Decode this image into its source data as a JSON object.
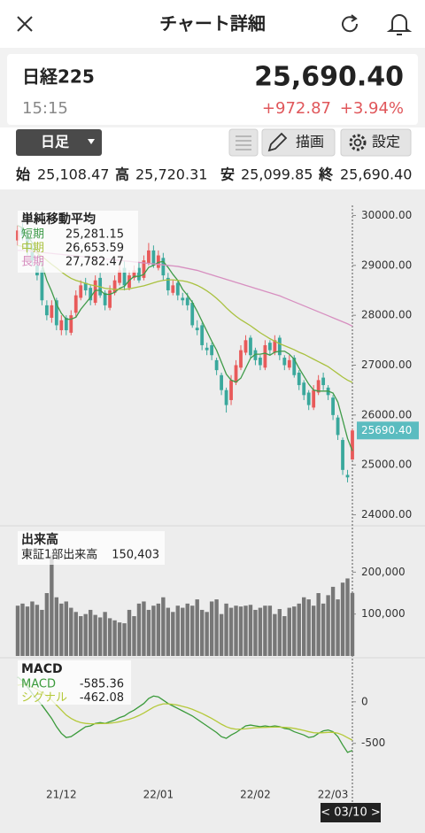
{
  "header": {
    "title": "チャート詳細"
  },
  "quote": {
    "name": "日経225",
    "price": "25,690.40",
    "time": "15:15",
    "change": "+972.87",
    "change_percent": "+3.94%"
  },
  "controls": {
    "period": "日足",
    "draw": "描画",
    "settings": "設定"
  },
  "ohlc": [
    {
      "label": "始",
      "value": "25,108.47"
    },
    {
      "label": "高",
      "value": "25,720.31"
    },
    {
      "label": "安",
      "value": "25,099.85"
    },
    {
      "label": "終",
      "value": "25,690.40"
    }
  ],
  "chart_data": [
    {
      "type": "candlestick",
      "title": "単純移動平均",
      "up_color": "#e85a5a",
      "down_color": "#3aa89c",
      "open": [
        29500,
        29750,
        29650,
        29350,
        29000,
        28900,
        28200,
        27950,
        28300,
        27700,
        27950,
        27650,
        28050,
        28350,
        28650,
        28550,
        28250,
        28750,
        28450,
        28150,
        28450,
        28650,
        28950,
        28550,
        28750,
        28950,
        28750,
        29050,
        29300,
        28950,
        29150,
        28750,
        28450,
        28650,
        28350,
        28350,
        28250,
        27750,
        27800,
        27350,
        27400,
        27100,
        26800,
        26500,
        26300,
        26650,
        26950,
        27250,
        27550,
        27300,
        27150,
        26950,
        27450,
        27250,
        27550,
        27150,
        26950,
        27150,
        26850,
        26650,
        26450,
        26150,
        26450,
        26750,
        26550,
        26350,
        25950,
        25500,
        24800,
        25108.47
      ],
      "high": [
        29800,
        29850,
        29700,
        29400,
        29100,
        28950,
        28300,
        28300,
        28350,
        28000,
        28000,
        28100,
        28500,
        28700,
        28750,
        28600,
        28800,
        28850,
        28500,
        28600,
        28800,
        29000,
        29100,
        28900,
        29000,
        29050,
        29200,
        29450,
        29400,
        29300,
        29250,
        28850,
        28700,
        28700,
        28450,
        28450,
        28300,
        27900,
        27850,
        27450,
        27450,
        27150,
        26850,
        26550,
        26800,
        27100,
        27400,
        27600,
        27600,
        27350,
        27200,
        27500,
        27500,
        27600,
        27600,
        27200,
        27200,
        27200,
        26900,
        26700,
        26500,
        26600,
        26800,
        26850,
        26600,
        26400,
        26000,
        25550,
        24900,
        25720.31
      ],
      "low": [
        29400,
        29500,
        29200,
        29000,
        28700,
        28200,
        27900,
        27850,
        27700,
        27600,
        27600,
        27600,
        27950,
        28300,
        28400,
        28200,
        28200,
        28350,
        28100,
        28100,
        28400,
        28600,
        28500,
        28500,
        28700,
        28650,
        28700,
        29000,
        28950,
        28900,
        28700,
        28400,
        28400,
        28300,
        28200,
        28100,
        27750,
        27600,
        27300,
        27200,
        27100,
        26800,
        26400,
        26050,
        26200,
        26600,
        26900,
        27200,
        27150,
        27000,
        26900,
        26900,
        27200,
        27200,
        27100,
        26900,
        26900,
        26750,
        26500,
        26300,
        26100,
        26100,
        26400,
        26500,
        26300,
        25900,
        25500,
        24800,
        24650,
        25099.85
      ],
      "close": [
        29700,
        29600,
        29300,
        29100,
        28800,
        28300,
        28000,
        28200,
        27800,
        27900,
        27700,
        28000,
        28400,
        28600,
        28500,
        28300,
        28700,
        28400,
        28200,
        28500,
        28700,
        28900,
        28600,
        28800,
        28900,
        28700,
        29100,
        29300,
        29000,
        29200,
        28800,
        28500,
        28600,
        28400,
        28300,
        28200,
        27800,
        27700,
        27400,
        27300,
        27200,
        26900,
        26500,
        26200,
        26700,
        27000,
        27300,
        27500,
        27200,
        27100,
        27000,
        27400,
        27300,
        27500,
        27200,
        27000,
        27100,
        26800,
        26600,
        26400,
        26200,
        26500,
        26700,
        26600,
        26400,
        26000,
        25600,
        24900,
        24750,
        25690.4
      ],
      "series": [
        {
          "name": "短期",
          "color": "#3f9b49",
          "current_label": "25,281.15",
          "values": [
            29800,
            29750,
            29600,
            29450,
            29300,
            29020,
            28700,
            28480,
            28220,
            28040,
            27920,
            27920,
            27960,
            28120,
            28240,
            28360,
            28500,
            28500,
            28420,
            28420,
            28460,
            28540,
            28580,
            28700,
            28780,
            28780,
            28820,
            28960,
            29000,
            29060,
            29080,
            28960,
            28820,
            28700,
            28520,
            28400,
            28260,
            28080,
            27880,
            27680,
            27480,
            27300,
            27060,
            26820,
            26700,
            26660,
            26740,
            26940,
            27140,
            27220,
            27220,
            27240,
            27200,
            27260,
            27280,
            27280,
            27220,
            27120,
            26940,
            26780,
            26620,
            26500,
            26480,
            26480,
            26480,
            26440,
            26260,
            25900,
            25530,
            25281.15
          ]
        },
        {
          "name": "中期",
          "color": "#a9c13f",
          "current_label": "26,653.59",
          "values": [
            29400,
            29380,
            29350,
            29300,
            29250,
            29180,
            29100,
            29020,
            28950,
            28870,
            28800,
            28740,
            28700,
            28670,
            28640,
            28610,
            28590,
            28570,
            28540,
            28530,
            28520,
            28520,
            28520,
            28530,
            28550,
            28570,
            28590,
            28620,
            28650,
            28680,
            28700,
            28710,
            28710,
            28700,
            28690,
            28670,
            28640,
            28600,
            28550,
            28490,
            28420,
            28340,
            28250,
            28150,
            28060,
            27980,
            27910,
            27850,
            27790,
            27720,
            27650,
            27590,
            27530,
            27480,
            27430,
            27390,
            27350,
            27310,
            27260,
            27220,
            27170,
            27120,
            27070,
            27020,
            26970,
            26900,
            26830,
            26760,
            26700,
            26653.59
          ]
        },
        {
          "name": "長期",
          "color": "#d78fc0",
          "current_label": "27,782.47",
          "values": [
            29300,
            29300,
            29290,
            29280,
            29270,
            29260,
            29250,
            29240,
            29230,
            29220,
            29210,
            29200,
            29190,
            29180,
            29170,
            29160,
            29150,
            29140,
            29130,
            29120,
            29110,
            29100,
            29090,
            29080,
            29070,
            29060,
            29050,
            29040,
            29030,
            29020,
            29010,
            29000,
            28990,
            28980,
            28960,
            28940,
            28920,
            28900,
            28870,
            28840,
            28810,
            28780,
            28750,
            28720,
            28690,
            28660,
            28630,
            28600,
            28570,
            28540,
            28510,
            28480,
            28450,
            28420,
            28390,
            28350,
            28310,
            28270,
            28230,
            28190,
            28150,
            28110,
            28070,
            28030,
            27990,
            27950,
            27910,
            27870,
            27830,
            27782.47
          ]
        }
      ],
      "ylim": [
        23850,
        30150
      ],
      "yticks": [
        {
          "value": 24000,
          "label": "24000.00"
        },
        {
          "value": 25000,
          "label": "25000.00"
        },
        {
          "value": 26000,
          "label": "26000.00"
        },
        {
          "value": 27000,
          "label": "27000.00"
        },
        {
          "value": 28000,
          "label": "28000.00"
        },
        {
          "value": 29000,
          "label": "29000.00"
        },
        {
          "value": 30000,
          "label": "30000.00"
        }
      ],
      "price_tag": {
        "value": 25690.4,
        "label": "25690.40",
        "color": "#5bbcc0"
      }
    },
    {
      "type": "bar",
      "title": "出来高",
      "series": [
        {
          "name": "東証1部出来高",
          "color": "#777777",
          "current_label": "150,403",
          "values": [
            120000,
            125000,
            118000,
            130000,
            122000,
            110000,
            150000,
            240000,
            140000,
            125000,
            130000,
            115000,
            105000,
            95000,
            100000,
            110000,
            98000,
            92000,
            105000,
            90000,
            85000,
            80000,
            78000,
            110000,
            95000,
            125000,
            130000,
            110000,
            120000,
            125000,
            140000,
            115000,
            105000,
            120000,
            115000,
            125000,
            120000,
            135000,
            110000,
            105000,
            130000,
            135000,
            100000,
            125000,
            115000,
            120000,
            118000,
            120000,
            122000,
            110000,
            115000,
            120000,
            120000,
            100000,
            112000,
            95000,
            115000,
            118000,
            125000,
            140000,
            135000,
            120000,
            150000,
            125000,
            145000,
            165000,
            135000,
            175000,
            185000,
            150403
          ]
        }
      ],
      "ylim": [
        0,
        300000
      ],
      "yticks": [
        {
          "value": 100000,
          "label": "100,000"
        },
        {
          "value": 200000,
          "label": "200,000"
        }
      ]
    },
    {
      "type": "line",
      "title": "MACD",
      "categories": [
        null,
        null,
        null,
        null,
        null,
        null,
        null,
        null,
        null,
        "21/12",
        null,
        null,
        null,
        null,
        null,
        null,
        null,
        null,
        null,
        null,
        null,
        null,
        null,
        null,
        null,
        null,
        null,
        null,
        null,
        "22/01",
        null,
        null,
        null,
        null,
        null,
        null,
        null,
        null,
        null,
        null,
        null,
        null,
        null,
        null,
        null,
        null,
        null,
        null,
        null,
        "22/02",
        null,
        null,
        null,
        null,
        null,
        null,
        null,
        null,
        null,
        null,
        null,
        null,
        null,
        null,
        null,
        "22/03",
        null,
        null,
        null,
        null
      ],
      "cursor_label": "< 03/10 >",
      "series": [
        {
          "name": "MACD",
          "color": "#3a9a3a",
          "current_label": "-585.36",
          "values": [
            300,
            250,
            180,
            100,
            30,
            -40,
            -120,
            -200,
            -300,
            -380,
            -430,
            -420,
            -380,
            -340,
            -300,
            -290,
            -260,
            -250,
            -260,
            -240,
            -220,
            -190,
            -170,
            -130,
            -100,
            -60,
            -20,
            40,
            70,
            60,
            20,
            -20,
            -50,
            -80,
            -110,
            -140,
            -170,
            -210,
            -250,
            -290,
            -330,
            -370,
            -420,
            -440,
            -400,
            -370,
            -330,
            -290,
            -280,
            -290,
            -300,
            -290,
            -300,
            -290,
            -300,
            -320,
            -330,
            -360,
            -380,
            -400,
            -430,
            -420,
            -380,
            -350,
            -340,
            -360,
            -420,
            -520,
            -610,
            -585.36
          ]
        },
        {
          "name": "シグナル",
          "color": "#b5c93a",
          "current_label": "-462.08",
          "values": [
            200,
            210,
            200,
            180,
            150,
            110,
            70,
            20,
            -40,
            -100,
            -160,
            -200,
            -230,
            -250,
            -260,
            -265,
            -265,
            -262,
            -262,
            -258,
            -250,
            -240,
            -225,
            -210,
            -190,
            -165,
            -135,
            -100,
            -65,
            -40,
            -25,
            -25,
            -30,
            -40,
            -55,
            -70,
            -90,
            -115,
            -140,
            -170,
            -200,
            -235,
            -270,
            -300,
            -320,
            -330,
            -330,
            -325,
            -318,
            -312,
            -310,
            -308,
            -306,
            -305,
            -305,
            -308,
            -312,
            -320,
            -332,
            -345,
            -360,
            -372,
            -375,
            -372,
            -368,
            -368,
            -378,
            -400,
            -432,
            -462.08
          ]
        }
      ],
      "ylim": [
        -930,
        510
      ],
      "yticks": [
        -500,
        0
      ]
    }
  ]
}
